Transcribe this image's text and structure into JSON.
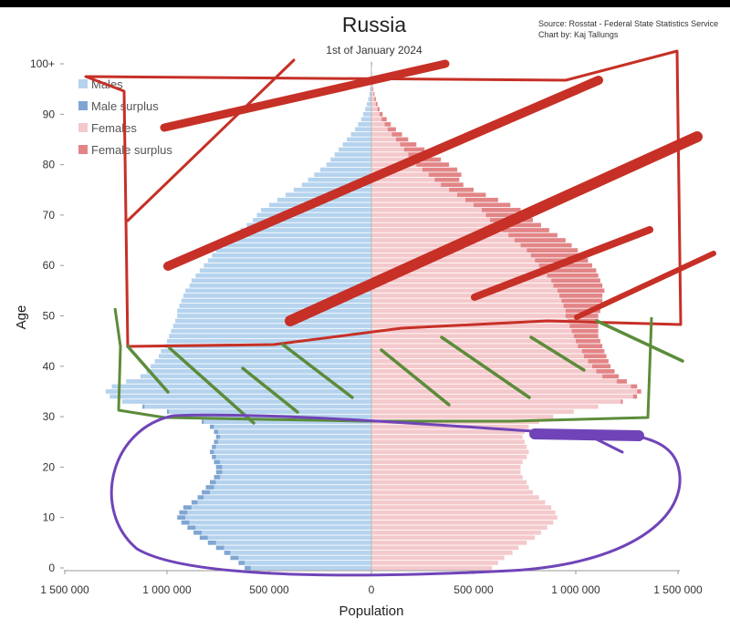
{
  "chart_data": {
    "type": "bar",
    "orientation": "population-pyramid",
    "title": "Russia",
    "subtitle": "1st of January 2024",
    "source_line1": "Source: Rosstat - Federal State Statistics Service",
    "source_line2": "Chart by: Kaj Tallungs",
    "xlabel": "Population",
    "ylabel": "Age",
    "x_ticks": [
      "1 500 000",
      "1 000 000",
      "500 000",
      "0",
      "500 000",
      "1 000 000",
      "1 500 000"
    ],
    "y_ticks": [
      "0",
      "10",
      "20",
      "30",
      "40",
      "50",
      "60",
      "70",
      "80",
      "90",
      "100+"
    ],
    "xlim": [
      -1500000,
      1500000
    ],
    "ylim": [
      0,
      100
    ],
    "legend_position": "top-left",
    "legend": [
      "Males",
      "Male surplus",
      "Females",
      "Female surplus"
    ],
    "colors": {
      "male": "#b5d3ee",
      "male_surplus": "#7fa6d3",
      "female": "#f4c9cc",
      "female_surplus": "#e28587"
    },
    "ages": [
      0,
      1,
      2,
      3,
      4,
      5,
      6,
      7,
      8,
      9,
      10,
      11,
      12,
      13,
      14,
      15,
      16,
      17,
      18,
      19,
      20,
      21,
      22,
      23,
      24,
      25,
      26,
      27,
      28,
      29,
      30,
      31,
      32,
      33,
      34,
      35,
      36,
      37,
      38,
      39,
      40,
      41,
      42,
      43,
      44,
      45,
      46,
      47,
      48,
      49,
      50,
      51,
      52,
      53,
      54,
      55,
      56,
      57,
      58,
      59,
      60,
      61,
      62,
      63,
      64,
      65,
      66,
      67,
      68,
      69,
      70,
      71,
      72,
      73,
      74,
      75,
      76,
      77,
      78,
      79,
      80,
      81,
      82,
      83,
      84,
      85,
      86,
      87,
      88,
      89,
      90,
      91,
      92,
      93,
      94,
      95,
      96,
      97,
      98,
      99,
      100
    ],
    "males": [
      620000,
      650000,
      690000,
      720000,
      760000,
      800000,
      840000,
      870000,
      900000,
      930000,
      950000,
      940000,
      920000,
      880000,
      850000,
      830000,
      810000,
      790000,
      770000,
      760000,
      760000,
      770000,
      780000,
      790000,
      780000,
      770000,
      760000,
      770000,
      790000,
      830000,
      900000,
      1000000,
      1120000,
      1220000,
      1280000,
      1300000,
      1270000,
      1200000,
      1130000,
      1100000,
      1080000,
      1060000,
      1040000,
      1030000,
      1010000,
      1000000,
      990000,
      980000,
      970000,
      960000,
      950000,
      950000,
      940000,
      930000,
      920000,
      910000,
      890000,
      880000,
      860000,
      840000,
      820000,
      800000,
      780000,
      760000,
      730000,
      700000,
      670000,
      640000,
      610000,
      580000,
      560000,
      540000,
      500000,
      460000,
      420000,
      380000,
      340000,
      310000,
      280000,
      250000,
      220000,
      200000,
      180000,
      160000,
      140000,
      120000,
      100000,
      80000,
      65000,
      50000,
      40000,
      30000,
      22000,
      15000,
      10000,
      7000,
      5000,
      3000,
      2000,
      1000,
      2000
    ],
    "females": [
      590000,
      620000,
      650000,
      690000,
      720000,
      760000,
      800000,
      830000,
      860000,
      890000,
      910000,
      900000,
      880000,
      850000,
      820000,
      790000,
      770000,
      760000,
      740000,
      730000,
      730000,
      740000,
      760000,
      770000,
      760000,
      750000,
      740000,
      750000,
      770000,
      820000,
      890000,
      990000,
      1110000,
      1230000,
      1300000,
      1320000,
      1300000,
      1250000,
      1210000,
      1190000,
      1170000,
      1160000,
      1150000,
      1140000,
      1130000,
      1120000,
      1110000,
      1110000,
      1110000,
      1110000,
      1110000,
      1120000,
      1120000,
      1130000,
      1130000,
      1140000,
      1130000,
      1120000,
      1110000,
      1100000,
      1080000,
      1060000,
      1040000,
      1010000,
      980000,
      950000,
      910000,
      870000,
      830000,
      790000,
      760000,
      730000,
      680000,
      620000,
      560000,
      500000,
      450000,
      430000,
      440000,
      420000,
      380000,
      340000,
      300000,
      260000,
      220000,
      180000,
      150000,
      120000,
      95000,
      75000,
      55000,
      40000,
      30000,
      22000,
      15000,
      10000,
      7000,
      5000,
      3000,
      2000,
      4000
    ]
  }
}
